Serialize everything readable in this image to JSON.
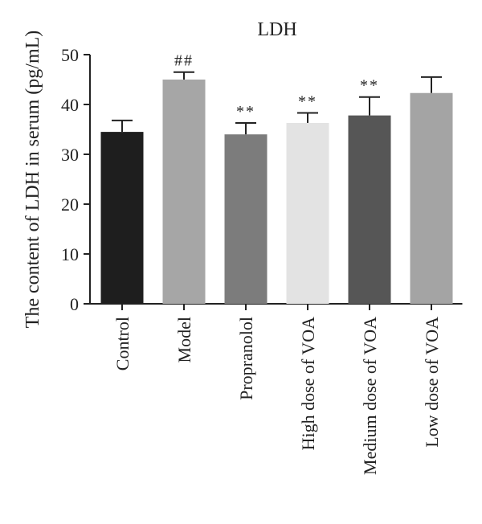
{
  "chart_data": {
    "type": "bar",
    "title": "LDH",
    "ylabel": "The content of LDH in serum (pg/mL)",
    "xlabel": "",
    "ylim": [
      0,
      50
    ],
    "yticks": [
      0,
      10,
      20,
      30,
      40,
      50
    ],
    "grid": false,
    "categories": [
      "Control",
      "Model",
      "Propranolol",
      "High dose of VOA",
      "Medium dose of VOA",
      "Low dose of VOA"
    ],
    "values": [
      34.5,
      45.0,
      34.0,
      36.3,
      37.8,
      42.3
    ],
    "errors": [
      2.3,
      1.5,
      2.3,
      2.0,
      3.7,
      3.2
    ],
    "annotations": [
      "",
      "##",
      "**",
      "**",
      "**",
      ""
    ],
    "colors": [
      "#1e1e1e",
      "#a6a6a6",
      "#7c7c7c",
      "#e3e3e3",
      "#565656",
      "#a4a4a4"
    ]
  }
}
